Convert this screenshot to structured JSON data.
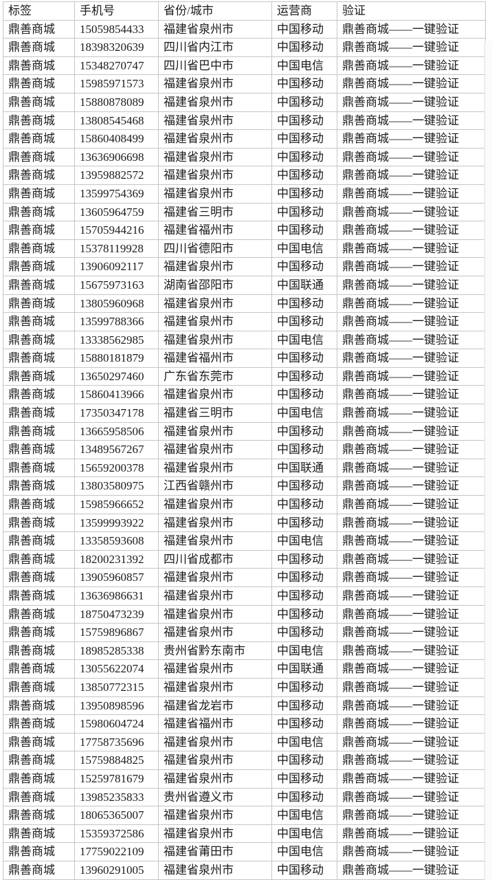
{
  "table": {
    "columns": [
      "标签",
      "手机号",
      "省份/城市",
      "运营商",
      "验证"
    ],
    "label_text": "鼎善商城",
    "verification_text": "鼎善商城——一键验证",
    "rows": [
      {
        "phone": "15059854433",
        "region": "福建省泉州市",
        "carrier": "中国移动"
      },
      {
        "phone": "18398320639",
        "region": "四川省内江市",
        "carrier": "中国移动"
      },
      {
        "phone": "15348270747",
        "region": "四川省巴中市",
        "carrier": "中国电信"
      },
      {
        "phone": "15985971573",
        "region": "福建省泉州市",
        "carrier": "中国移动"
      },
      {
        "phone": "15880878089",
        "region": "福建省泉州市",
        "carrier": "中国移动"
      },
      {
        "phone": "13808545468",
        "region": "福建省泉州市",
        "carrier": "中国移动"
      },
      {
        "phone": "15860408499",
        "region": "福建省泉州市",
        "carrier": "中国移动"
      },
      {
        "phone": "13636906698",
        "region": "福建省泉州市",
        "carrier": "中国移动"
      },
      {
        "phone": "13959882572",
        "region": "福建省泉州市",
        "carrier": "中国移动"
      },
      {
        "phone": "13599754369",
        "region": "福建省泉州市",
        "carrier": "中国移动"
      },
      {
        "phone": "13605964759",
        "region": "福建省三明市",
        "carrier": "中国移动"
      },
      {
        "phone": "15705944216",
        "region": "福建省福州市",
        "carrier": "中国移动"
      },
      {
        "phone": "15378119928",
        "region": "四川省德阳市",
        "carrier": "中国电信"
      },
      {
        "phone": "13906092117",
        "region": "福建省泉州市",
        "carrier": "中国移动"
      },
      {
        "phone": "15675973163",
        "region": "湖南省邵阳市",
        "carrier": "中国联通"
      },
      {
        "phone": "13805960968",
        "region": "福建省泉州市",
        "carrier": "中国移动"
      },
      {
        "phone": "13599788366",
        "region": "福建省泉州市",
        "carrier": "中国移动"
      },
      {
        "phone": "13338562985",
        "region": "福建省泉州市",
        "carrier": "中国电信"
      },
      {
        "phone": "15880181879",
        "region": "福建省福州市",
        "carrier": "中国移动"
      },
      {
        "phone": "13650297460",
        "region": "广东省东莞市",
        "carrier": "中国移动"
      },
      {
        "phone": "15860413966",
        "region": "福建省泉州市",
        "carrier": "中国移动"
      },
      {
        "phone": "17350347178",
        "region": "福建省三明市",
        "carrier": "中国电信"
      },
      {
        "phone": "13665958506",
        "region": "福建省泉州市",
        "carrier": "中国移动"
      },
      {
        "phone": "13489567267",
        "region": "福建省泉州市",
        "carrier": "中国移动"
      },
      {
        "phone": "15659200378",
        "region": "福建省泉州市",
        "carrier": "中国联通"
      },
      {
        "phone": "13803580975",
        "region": "江西省赣州市",
        "carrier": "中国移动"
      },
      {
        "phone": "15985966652",
        "region": "福建省泉州市",
        "carrier": "中国移动"
      },
      {
        "phone": "13599993922",
        "region": "福建省泉州市",
        "carrier": "中国移动"
      },
      {
        "phone": "13358593608",
        "region": "福建省泉州市",
        "carrier": "中国电信"
      },
      {
        "phone": "18200231392",
        "region": "四川省成都市",
        "carrier": "中国移动"
      },
      {
        "phone": "13905960857",
        "region": "福建省泉州市",
        "carrier": "中国移动"
      },
      {
        "phone": "13636986631",
        "region": "福建省泉州市",
        "carrier": "中国移动"
      },
      {
        "phone": "18750473239",
        "region": "福建省泉州市",
        "carrier": "中国移动"
      },
      {
        "phone": "15759896867",
        "region": "福建省泉州市",
        "carrier": "中国移动"
      },
      {
        "phone": "18985285338",
        "region": "贵州省黔东南市",
        "carrier": "中国电信"
      },
      {
        "phone": "13055622074",
        "region": "福建省泉州市",
        "carrier": "中国联通"
      },
      {
        "phone": "13850772315",
        "region": "福建省泉州市",
        "carrier": "中国移动"
      },
      {
        "phone": "13950898596",
        "region": "福建省龙岩市",
        "carrier": "中国移动"
      },
      {
        "phone": "15980604724",
        "region": "福建省福州市",
        "carrier": "中国移动"
      },
      {
        "phone": "17758735696",
        "region": "福建省泉州市",
        "carrier": "中国电信"
      },
      {
        "phone": "15759884825",
        "region": "福建省泉州市",
        "carrier": "中国移动"
      },
      {
        "phone": "15259781679",
        "region": "福建省泉州市",
        "carrier": "中国移动"
      },
      {
        "phone": "13985235833",
        "region": "贵州省遵义市",
        "carrier": "中国移动"
      },
      {
        "phone": "18065365007",
        "region": "福建省泉州市",
        "carrier": "中国电信"
      },
      {
        "phone": "15359372586",
        "region": "福建省泉州市",
        "carrier": "中国电信"
      },
      {
        "phone": "17759022109",
        "region": "福建省莆田市",
        "carrier": "中国电信"
      },
      {
        "phone": "13960291005",
        "region": "福建省泉州市",
        "carrier": "中国移动"
      }
    ],
    "colors": {
      "border": "#c6c6c6",
      "text": "#1b1b1b",
      "background": "#ffffff"
    }
  }
}
